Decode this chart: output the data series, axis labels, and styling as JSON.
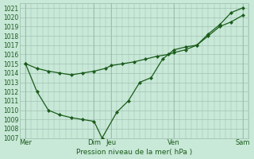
{
  "bg_color": "#c8e8d8",
  "grid_color": "#99bbaa",
  "line_color": "#1a5c1a",
  "xlabel": "Pression niveau de la mer( hPa )",
  "ylim": [
    1007,
    1021.5
  ],
  "ytick_vals": [
    1007,
    1008,
    1009,
    1010,
    1011,
    1012,
    1013,
    1014,
    1015,
    1016,
    1017,
    1018,
    1019,
    1020,
    1021
  ],
  "xlim": [
    0,
    20
  ],
  "xtick_positions": [
    0.5,
    6.5,
    8.0,
    13.5,
    19.5
  ],
  "xtick_labels": [
    "Mer",
    "Dim",
    "Jeu",
    "Ven",
    "Sam"
  ],
  "vline_positions": [
    0.5,
    6.5,
    8.0,
    13.5,
    19.5
  ],
  "series1_x": [
    0.5,
    1.5,
    2.5,
    3.5,
    4.5,
    5.5,
    6.5,
    7.5,
    8.0,
    9.0,
    10.0,
    11.0,
    12.0,
    13.0,
    13.5,
    14.5,
    15.5,
    16.5,
    17.5,
    18.5,
    19.5
  ],
  "series1_y": [
    1015.0,
    1014.5,
    1014.2,
    1014.0,
    1013.8,
    1014.0,
    1014.2,
    1014.5,
    1014.8,
    1015.0,
    1015.2,
    1015.5,
    1015.8,
    1016.0,
    1016.2,
    1016.5,
    1017.0,
    1018.0,
    1019.0,
    1019.5,
    1020.2
  ],
  "series2_x": [
    0.5,
    1.5,
    2.5,
    3.5,
    4.5,
    5.5,
    6.5,
    7.2,
    8.5,
    9.5,
    10.5,
    11.5,
    12.5,
    13.5,
    14.5,
    15.5,
    16.5,
    17.5,
    18.5,
    19.5
  ],
  "series2_y": [
    1015.0,
    1012.0,
    1010.0,
    1009.5,
    1009.2,
    1009.0,
    1008.8,
    1007.0,
    1009.8,
    1011.0,
    1013.0,
    1013.5,
    1015.5,
    1016.5,
    1016.8,
    1017.0,
    1018.2,
    1019.2,
    1020.5,
    1021.0
  ]
}
